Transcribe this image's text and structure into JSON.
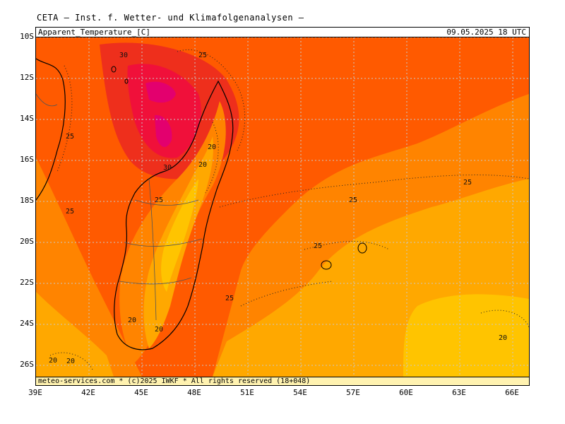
{
  "header": {
    "title": "CETA — Inst. f. Wetter- und Klimafolgenanalysen —"
  },
  "plot": {
    "variable_label": "Apparent_Temperature_[C]",
    "valid_time": "09.05.2025  18 UTC",
    "footer": "meteo-services.com * (c)2025 IWKF * All rights reserved (18+048)"
  },
  "axes": {
    "y_ticks": [
      "10S",
      "12S",
      "14S",
      "16S",
      "18S",
      "20S",
      "22S",
      "24S",
      "26S"
    ],
    "x_ticks": [
      "39E",
      "42E",
      "45E",
      "48E",
      "51E",
      "54E",
      "57E",
      "60E",
      "63E",
      "66E"
    ]
  },
  "contour_labels": [
    "30",
    "25",
    "25",
    "20",
    "20",
    "30",
    "25",
    "25",
    "25",
    "25",
    "25",
    "25",
    "20",
    "20",
    "20",
    "20",
    "20"
  ],
  "colors": {
    "very_hot": "#e3006e",
    "hot": "#ee2f1c",
    "warm": "#ff5a00",
    "mild": "#ff8400",
    "cool": "#ffa800",
    "coolest": "#ffc400",
    "land_outline": "#000000",
    "grid": "#c8c8c8"
  }
}
